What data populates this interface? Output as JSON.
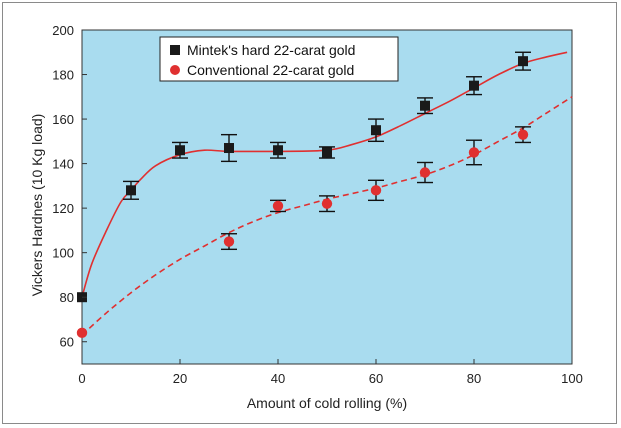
{
  "chart_data": {
    "type": "scatter",
    "xlabel": "Amount of cold rolling (%)",
    "ylabel": "Vickers Hardnes (10 Kg load)",
    "xlim": [
      0,
      100
    ],
    "ylim": [
      50,
      200
    ],
    "xticks": [
      0,
      20,
      40,
      60,
      80,
      100
    ],
    "yticks": [
      60,
      80,
      100,
      120,
      140,
      160,
      180,
      200
    ],
    "grid": false,
    "legend_position": "top-center",
    "plot_background": "#a9dcef",
    "series": [
      {
        "name": "Mintek's hard 22-carat gold",
        "marker": "square",
        "marker_color": "#1a1a1a",
        "line_color": "#e03030",
        "line_style": "solid",
        "points": [
          {
            "x": 0,
            "y": 80,
            "err": 0
          },
          {
            "x": 10,
            "y": 128,
            "err": 4
          },
          {
            "x": 20,
            "y": 146,
            "err": 3.5
          },
          {
            "x": 30,
            "y": 147,
            "err": 6
          },
          {
            "x": 40,
            "y": 146,
            "err": 3.5
          },
          {
            "x": 50,
            "y": 145,
            "err": 2.5
          },
          {
            "x": 60,
            "y": 155,
            "err": 5
          },
          {
            "x": 70,
            "y": 166,
            "err": 3.5
          },
          {
            "x": 80,
            "y": 175,
            "err": 4
          },
          {
            "x": 90,
            "y": 186,
            "err": 4
          }
        ],
        "fit_curve": [
          [
            0,
            80
          ],
          [
            2,
            95
          ],
          [
            5,
            110
          ],
          [
            8,
            123
          ],
          [
            10,
            128
          ],
          [
            12,
            133
          ],
          [
            15,
            139
          ],
          [
            20,
            144
          ],
          [
            25,
            146
          ],
          [
            30,
            145.5
          ],
          [
            40,
            145.5
          ],
          [
            50,
            146
          ],
          [
            55,
            148.5
          ],
          [
            60,
            152
          ],
          [
            65,
            157
          ],
          [
            70,
            162.5
          ],
          [
            75,
            168
          ],
          [
            80,
            174
          ],
          [
            85,
            180
          ],
          [
            90,
            185
          ],
          [
            95,
            188
          ],
          [
            99,
            190
          ]
        ]
      },
      {
        "name": "Conventional 22-carat gold",
        "marker": "circle",
        "marker_color": "#e03030",
        "line_color": "#e03030",
        "line_style": "dashed",
        "points": [
          {
            "x": 0,
            "y": 64,
            "err": 0
          },
          {
            "x": 30,
            "y": 105,
            "err": 3.5
          },
          {
            "x": 40,
            "y": 121,
            "err": 2.5
          },
          {
            "x": 50,
            "y": 122,
            "err": 3.5
          },
          {
            "x": 60,
            "y": 128,
            "err": 4.5
          },
          {
            "x": 70,
            "y": 136,
            "err": 4.5
          },
          {
            "x": 80,
            "y": 145,
            "err": 5.5
          },
          {
            "x": 90,
            "y": 153,
            "err": 3.5
          }
        ],
        "fit_curve": [
          [
            0,
            63
          ],
          [
            5,
            73
          ],
          [
            10,
            82
          ],
          [
            15,
            90
          ],
          [
            20,
            97
          ],
          [
            25,
            103
          ],
          [
            30,
            109
          ],
          [
            35,
            114
          ],
          [
            40,
            118
          ],
          [
            45,
            121
          ],
          [
            50,
            124
          ],
          [
            55,
            126.5
          ],
          [
            60,
            129
          ],
          [
            65,
            132
          ],
          [
            70,
            135
          ],
          [
            75,
            139
          ],
          [
            80,
            144
          ],
          [
            85,
            150
          ],
          [
            90,
            156
          ],
          [
            95,
            163
          ],
          [
            100,
            170
          ]
        ]
      }
    ]
  }
}
